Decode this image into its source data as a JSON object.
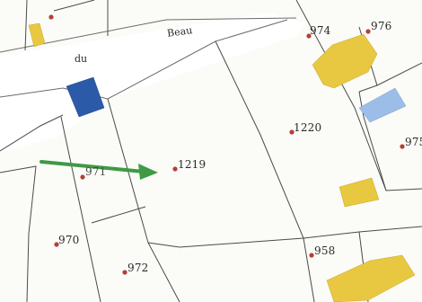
{
  "map": {
    "street_labels": [
      "du",
      "Beau"
    ],
    "parcel_labels": [
      "974",
      "976",
      "1220",
      "975",
      "1219",
      "971",
      "970",
      "972",
      "958"
    ],
    "colors": {
      "building_yellow": "#e8c840",
      "building_blue_dark": "#2b5aa8",
      "building_blue_light": "#9cbde8",
      "arrow_green": "#3f9a45",
      "point_red": "#b44034",
      "parcel_line": "#4a4a4a"
    },
    "icons": [
      "arrow-icon",
      "parcel-point-icon"
    ]
  }
}
